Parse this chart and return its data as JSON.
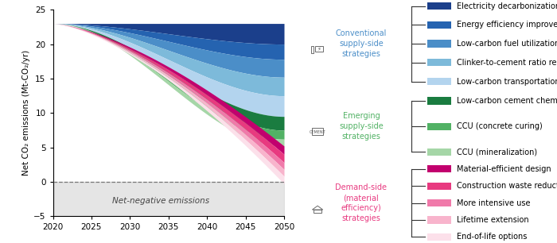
{
  "ylabel": "Net CO₂ emissions (Mt-CO₂/yr)",
  "ylim": [
    -5,
    25
  ],
  "xlim": [
    2020,
    2050
  ],
  "yticks": [
    -5,
    0,
    5,
    10,
    15,
    20,
    25
  ],
  "xticks": [
    2020,
    2025,
    2030,
    2035,
    2040,
    2045,
    2050
  ],
  "net_negative_color": "#d4d4d4",
  "net_negative_label": "Net-negative emissions",
  "top_boundary_2050": 23.0,
  "boundaries_2050": [
    23.0,
    20.0,
    17.8,
    15.2,
    12.5,
    9.5,
    7.5,
    6.2,
    5.2,
    4.0,
    2.8,
    1.8,
    0.8,
    -0.3
  ],
  "colors_ordered": [
    "#1b3f8b",
    "#2563b0",
    "#4b8ec8",
    "#7dbada",
    "#b3d4ee",
    "#1a7c40",
    "#52b265",
    "#a5d6a7",
    "#c2006e",
    "#e83a80",
    "#f07aaa",
    "#f8b4cc",
    "#fce0ea"
  ],
  "curve_powers": [
    2.5,
    2.5,
    2.5,
    2.5,
    2.5,
    2.5,
    2.5,
    2.5,
    1.5,
    1.5,
    1.5,
    1.5,
    1.5
  ],
  "legend_groups": [
    {
      "label": "Conventional\nsupply-side\nstrategies",
      "label_color": "#4b8ec8",
      "items": [
        {
          "name": "Electricity decarbonization",
          "color": "#1b3f8b"
        },
        {
          "name": "Energy efficiency improvement",
          "color": "#2563b0"
        },
        {
          "name": "Low-carbon fuel utilization",
          "color": "#4b8ec8"
        },
        {
          "name": "Clinker-to-cement ratio reduction",
          "color": "#7dbada"
        },
        {
          "name": "Low-carbon transportation",
          "color": "#b3d4ee"
        }
      ]
    },
    {
      "label": "Emerging\nsupply-side\nstrategies",
      "label_color": "#52b265",
      "items": [
        {
          "name": "Low-carbon cement chemistries",
          "color": "#1a7c40"
        },
        {
          "name": "CCU (concrete curing)",
          "color": "#52b265"
        },
        {
          "name": "CCU (mineralization)",
          "color": "#a5d6a7"
        }
      ]
    },
    {
      "label": "Demand-side\n(material\nefficiency)\nstrategies",
      "label_color": "#e83a80",
      "items": [
        {
          "name": "Material-efficient design",
          "color": "#c2006e"
        },
        {
          "name": "Construction waste reduction",
          "color": "#e83a80"
        },
        {
          "name": "More intensive use",
          "color": "#f07aaa"
        },
        {
          "name": "Lifetime extension",
          "color": "#f8b4cc"
        },
        {
          "name": "End-of-life options",
          "color": "#fce0ea"
        }
      ]
    }
  ]
}
